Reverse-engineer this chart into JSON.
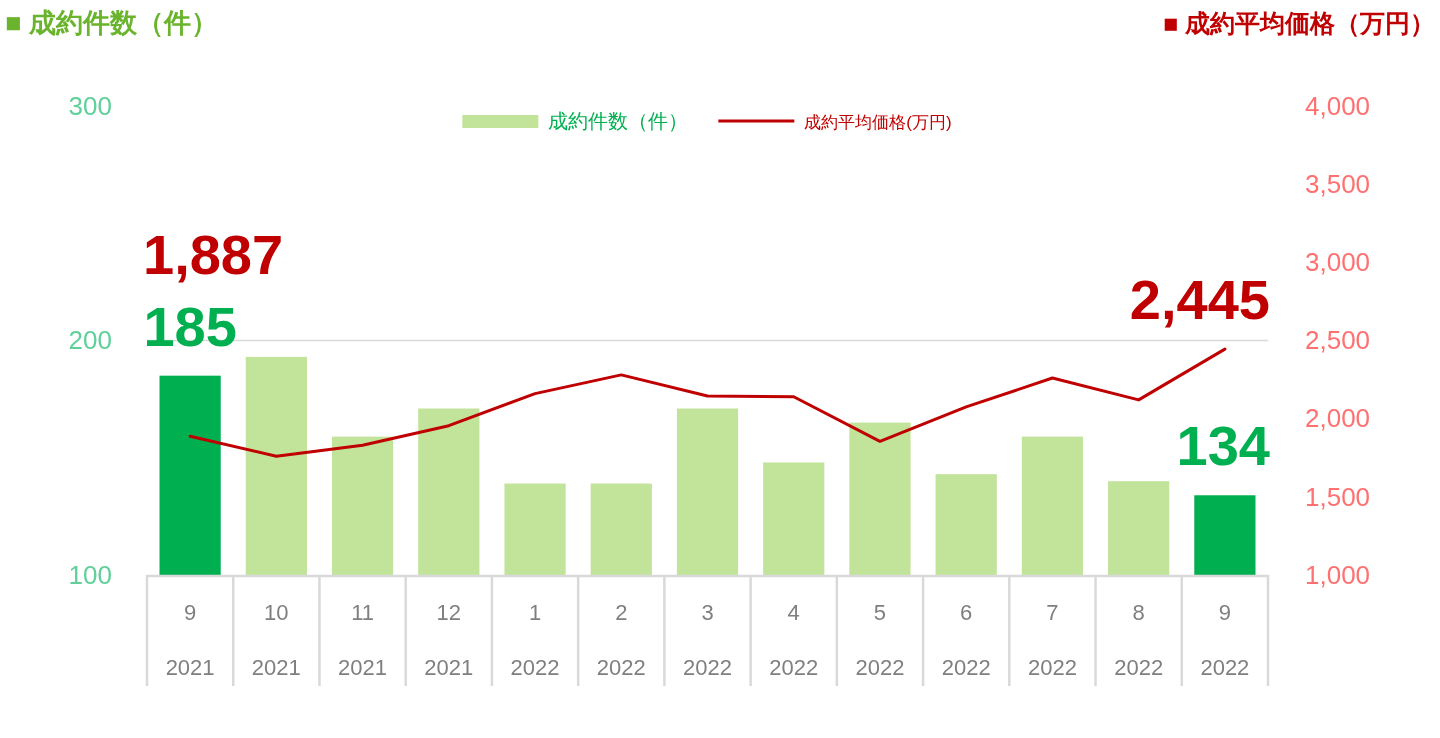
{
  "chart_data": {
    "type": "bar",
    "ylabel": "■ 成約件数（件）",
    "y2label": "■ 成約平均価格（万円）",
    "categories": [
      "9\n2021",
      "10\n2021",
      "11\n2021",
      "12\n2021",
      "1\n2022",
      "2\n2022",
      "3\n2022",
      "4\n2022",
      "5\n2022",
      "6\n2022",
      "7\n2022",
      "8\n2022",
      "9\n2022"
    ],
    "series": [
      {
        "name": "成約件数（件）",
        "color": "#c2e39a",
        "colors": [
          "#00b050",
          "#c2e39a",
          "#c2e39a",
          "#c2e39a",
          "#c2e39a",
          "#c2e39a",
          "#c2e39a",
          "#c2e39a",
          "#c2e39a",
          "#c2e39a",
          "#c2e39a",
          "#c2e39a",
          "#00b050"
        ],
        "values": [
          185,
          193,
          159,
          171,
          139,
          139,
          171,
          148,
          165,
          143,
          159,
          140,
          134
        ],
        "value_labels": [
          "185",
          null,
          null,
          null,
          null,
          null,
          null,
          null,
          null,
          null,
          null,
          null,
          "134"
        ]
      },
      {
        "name": "成約平均価格(万円)",
        "type": "line",
        "axis": "y2",
        "color": "#c00000",
        "values": [
          1887,
          1760,
          1830,
          1955,
          2160,
          2280,
          2145,
          2140,
          1855,
          2075,
          2260,
          2120,
          2445
        ],
        "value_labels": [
          "1,887",
          null,
          null,
          null,
          null,
          null,
          null,
          null,
          null,
          null,
          null,
          null,
          "2,445"
        ]
      }
    ],
    "ylim": [
      100,
      300
    ],
    "yticks": [
      100,
      200,
      300
    ],
    "y2lim": [
      1000,
      4000
    ],
    "y2ticks": [
      {
        "value": 1000,
        "label": "1,000"
      },
      {
        "value": 1500,
        "label": "1,500"
      },
      {
        "value": 2000,
        "label": "2,000"
      },
      {
        "value": 2500,
        "label": "2,500"
      },
      {
        "value": 3000,
        "label": "3,000"
      },
      {
        "value": 3500,
        "label": "3,500"
      },
      {
        "value": 4000,
        "label": "4,000"
      }
    ],
    "legend": "top",
    "ref_lines": [
      {
        "axis": "y",
        "value": 200,
        "color": "#d9d9d9"
      }
    ]
  }
}
